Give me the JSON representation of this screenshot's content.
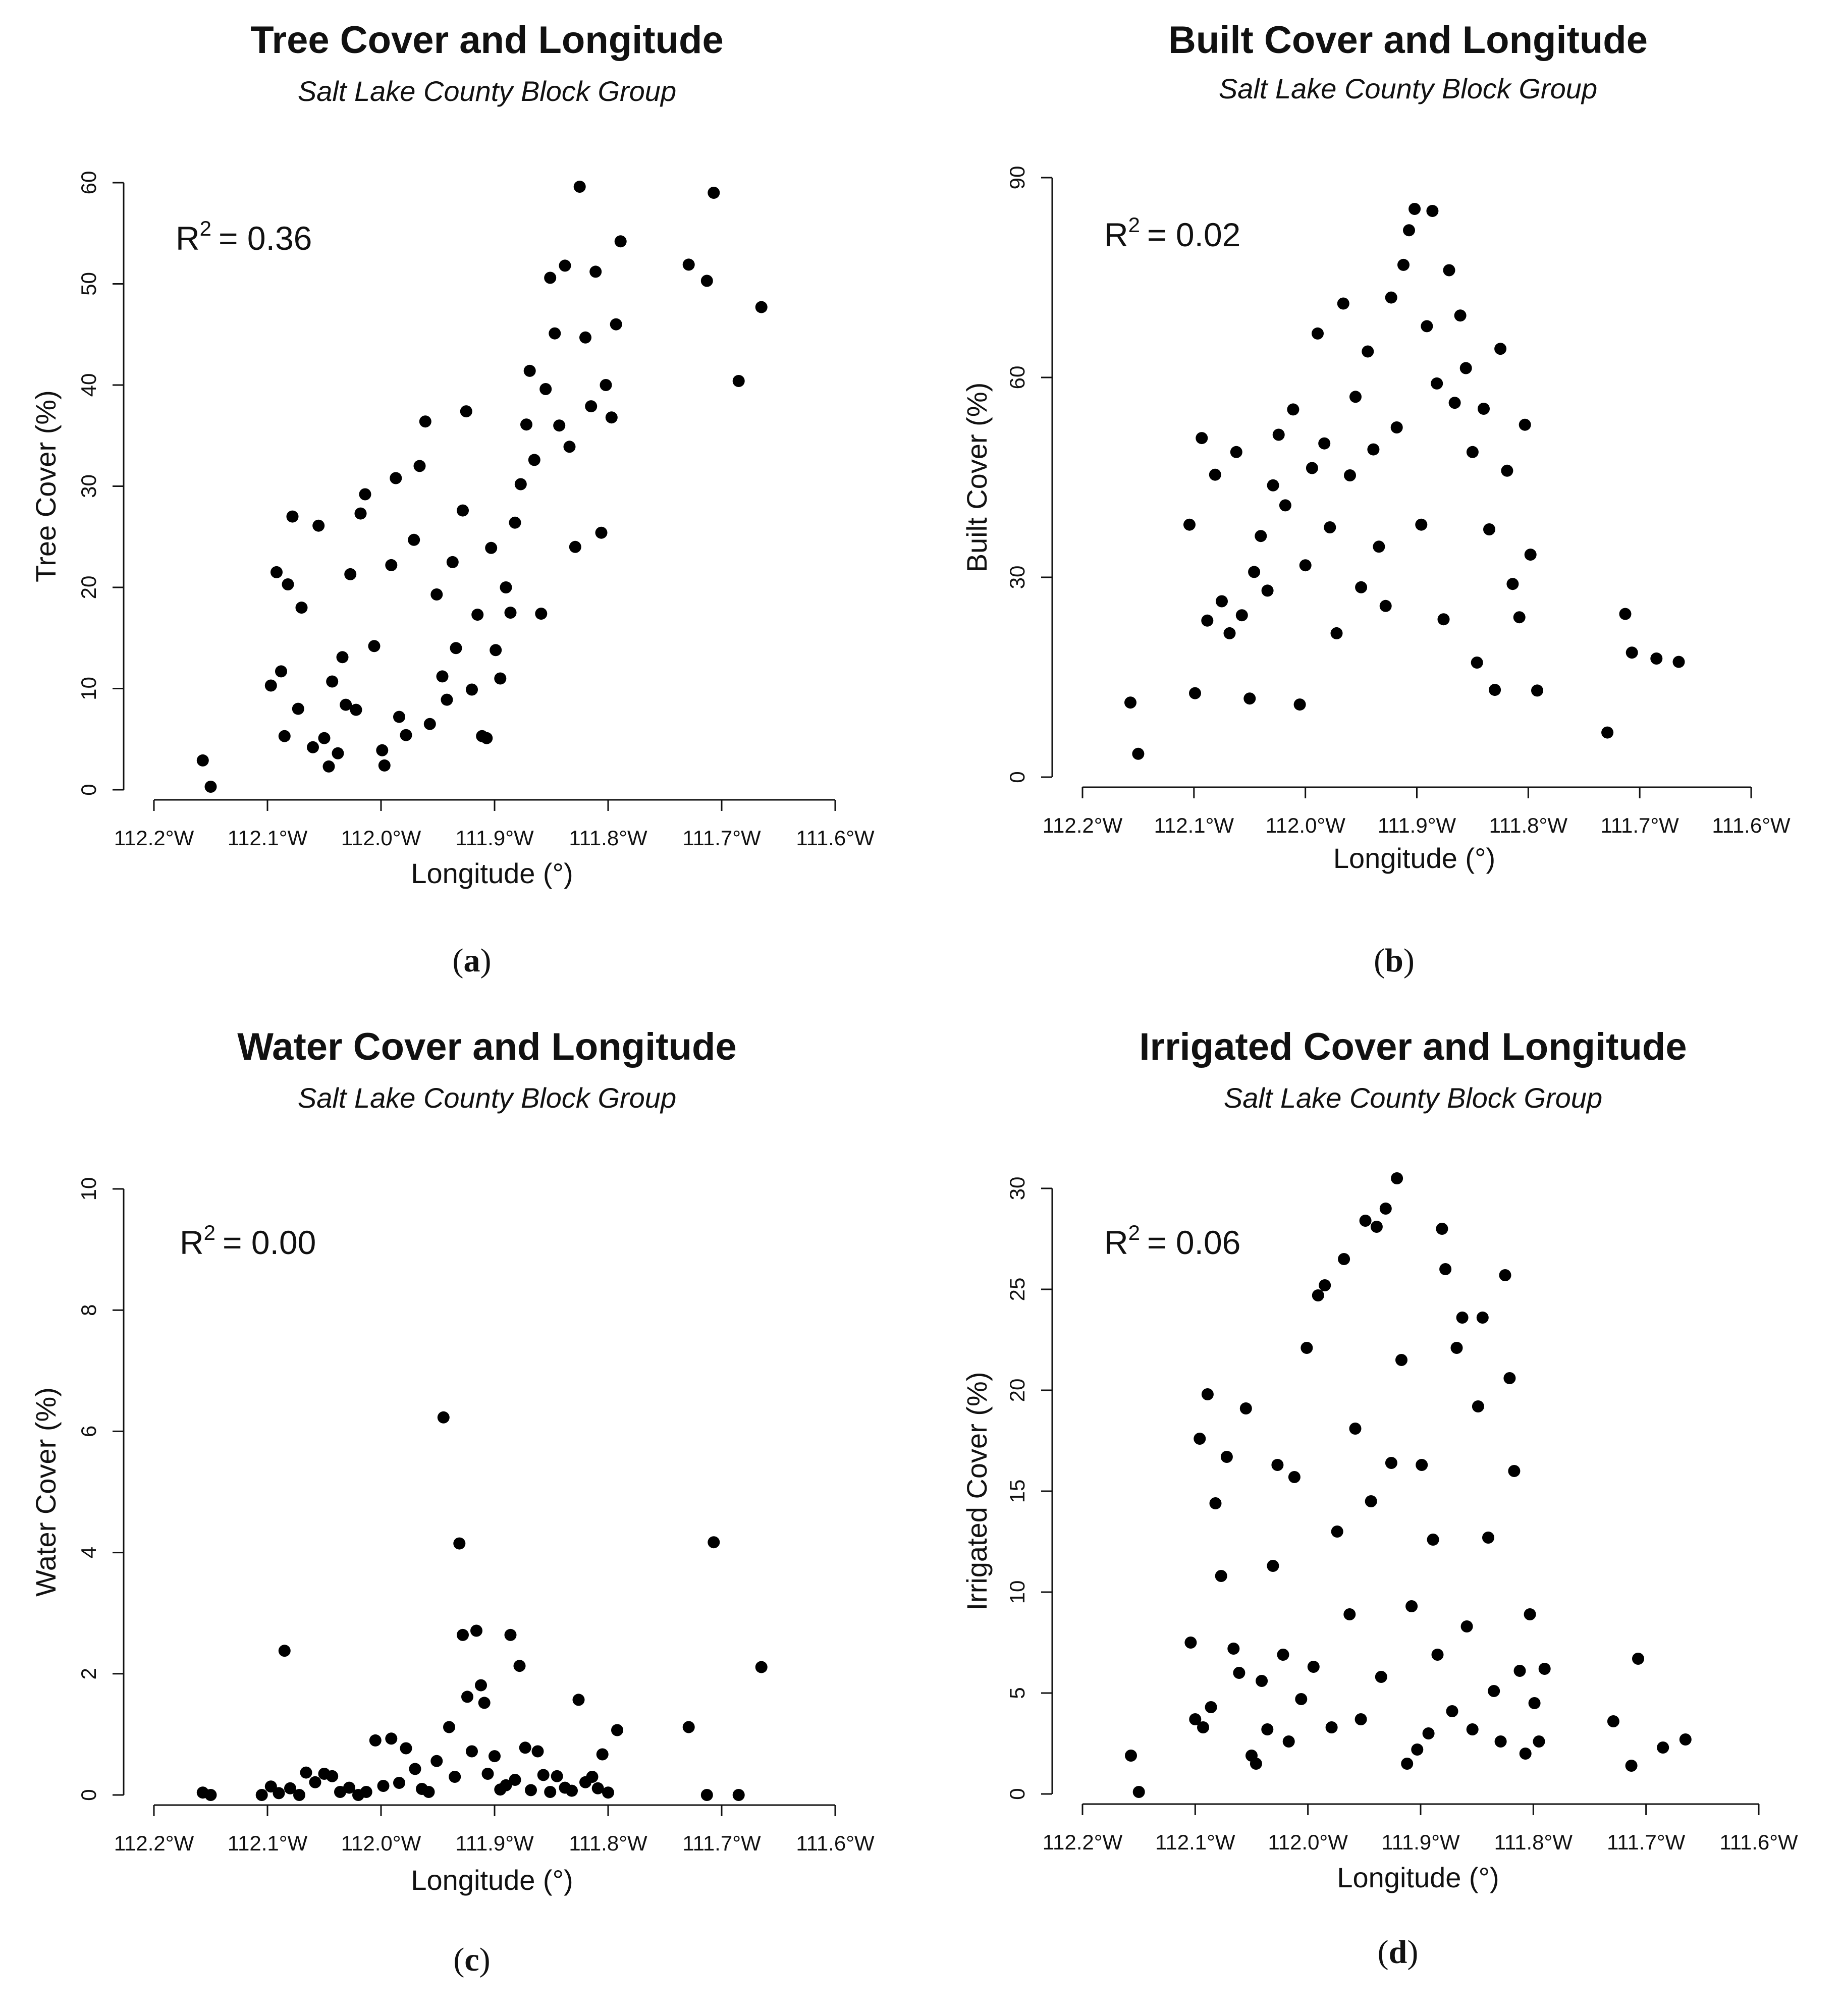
{
  "figure": {
    "panels": [
      "a",
      "b",
      "c",
      "d"
    ]
  },
  "chart_data": [
    {
      "id": "a",
      "type": "scatter",
      "title": "Tree Cover and Longitude",
      "subtitle": "Salt Lake County Block Group",
      "xlabel": "Longitude (°)",
      "ylabel": "Tree Cover (%)",
      "xlim": [
        -112.2,
        -111.6
      ],
      "ylim": [
        0,
        60
      ],
      "xticks": [
        -112.2,
        -112.1,
        -112.0,
        -111.9,
        -111.8,
        -111.7,
        -111.6
      ],
      "xtick_labels": [
        "112.2°W",
        "112.1°W",
        "112.0°W",
        "111.9°W",
        "111.8°W",
        "111.7°W",
        "111.6°W"
      ],
      "yticks": [
        0,
        10,
        20,
        30,
        40,
        50,
        60
      ],
      "ytick_labels": [
        "0",
        "10",
        "20",
        "30",
        "40",
        "50",
        "60"
      ],
      "r2_label": "R",
      "r2_value": "=  0.36",
      "caption_letter": "a",
      "points": [
        [
          -112.157,
          2.9
        ],
        [
          -112.15,
          0.3
        ],
        [
          -112.097,
          10.3
        ],
        [
          -112.092,
          21.5
        ],
        [
          -112.088,
          11.7
        ],
        [
          -112.085,
          5.3
        ],
        [
          -112.082,
          20.3
        ],
        [
          -112.078,
          27.0
        ],
        [
          -112.073,
          8.0
        ],
        [
          -112.07,
          18.0
        ],
        [
          -112.06,
          4.2
        ],
        [
          -112.055,
          26.1
        ],
        [
          -112.05,
          5.1
        ],
        [
          -112.046,
          2.3
        ],
        [
          -112.043,
          10.7
        ],
        [
          -112.038,
          3.6
        ],
        [
          -112.034,
          13.1
        ],
        [
          -112.031,
          8.4
        ],
        [
          -112.027,
          21.3
        ],
        [
          -112.022,
          7.9
        ],
        [
          -112.018,
          27.3
        ],
        [
          -112.014,
          29.2
        ],
        [
          -112.006,
          14.2
        ],
        [
          -111.999,
          3.9
        ],
        [
          -111.997,
          2.4
        ],
        [
          -111.991,
          22.2
        ],
        [
          -111.987,
          30.8
        ],
        [
          -111.984,
          7.2
        ],
        [
          -111.978,
          5.4
        ],
        [
          -111.971,
          24.7
        ],
        [
          -111.966,
          32.0
        ],
        [
          -111.961,
          36.4
        ],
        [
          -111.957,
          6.5
        ],
        [
          -111.951,
          19.3
        ],
        [
          -111.946,
          11.2
        ],
        [
          -111.942,
          8.9
        ],
        [
          -111.937,
          22.5
        ],
        [
          -111.934,
          14.0
        ],
        [
          -111.928,
          27.6
        ],
        [
          -111.925,
          37.4
        ],
        [
          -111.92,
          9.9
        ],
        [
          -111.915,
          17.3
        ],
        [
          -111.911,
          5.3
        ],
        [
          -111.907,
          5.1
        ],
        [
          -111.903,
          23.9
        ],
        [
          -111.899,
          13.8
        ],
        [
          -111.895,
          11.0
        ],
        [
          -111.89,
          20.0
        ],
        [
          -111.886,
          17.5
        ],
        [
          -111.882,
          26.4
        ],
        [
          -111.877,
          30.2
        ],
        [
          -111.872,
          36.1
        ],
        [
          -111.869,
          41.4
        ],
        [
          -111.865,
          32.6
        ],
        [
          -111.859,
          17.4
        ],
        [
          -111.855,
          39.6
        ],
        [
          -111.851,
          50.6
        ],
        [
          -111.847,
          45.1
        ],
        [
          -111.843,
          36.0
        ],
        [
          -111.838,
          51.8
        ],
        [
          -111.834,
          33.9
        ],
        [
          -111.829,
          24.0
        ],
        [
          -111.825,
          59.6
        ],
        [
          -111.82,
          44.7
        ],
        [
          -111.815,
          37.9
        ],
        [
          -111.811,
          51.2
        ],
        [
          -111.806,
          25.4
        ],
        [
          -111.802,
          40.0
        ],
        [
          -111.797,
          36.8
        ],
        [
          -111.793,
          46.0
        ],
        [
          -111.789,
          54.2
        ],
        [
          -111.729,
          51.9
        ],
        [
          -111.713,
          50.3
        ],
        [
          -111.707,
          59.0
        ],
        [
          -111.685,
          40.4
        ],
        [
          -111.665,
          47.7
        ]
      ]
    },
    {
      "id": "b",
      "type": "scatter",
      "title": "Built Cover and Longitude",
      "subtitle": "Salt Lake County Block Group",
      "xlabel": "Longitude (°)",
      "ylabel": "Built Cover (%)",
      "xlim": [
        -112.2,
        -111.6
      ],
      "ylim": [
        0,
        90
      ],
      "xticks": [
        -112.2,
        -112.1,
        -112.0,
        -111.9,
        -111.8,
        -111.7,
        -111.6
      ],
      "xtick_labels": [
        "112.2°W",
        "112.1°W",
        "112.0°W",
        "111.9°W",
        "111.8°W",
        "111.7°W",
        "111.6°W"
      ],
      "yticks": [
        0,
        30,
        60,
        90
      ],
      "ytick_labels": [
        "0",
        "30",
        "60",
        "90"
      ],
      "r2_label": "R",
      "r2_value": "=  0.02",
      "caption_letter": "b",
      "points": [
        [
          -112.157,
          11.2
        ],
        [
          -112.15,
          3.5
        ],
        [
          -112.104,
          37.9
        ],
        [
          -112.099,
          12.6
        ],
        [
          -112.093,
          50.9
        ],
        [
          -112.088,
          23.5
        ],
        [
          -112.081,
          45.4
        ],
        [
          -112.075,
          26.4
        ],
        [
          -112.068,
          21.6
        ],
        [
          -112.062,
          48.8
        ],
        [
          -112.057,
          24.3
        ],
        [
          -112.05,
          11.8
        ],
        [
          -112.046,
          30.8
        ],
        [
          -112.04,
          36.2
        ],
        [
          -112.034,
          28.0
        ],
        [
          -112.029,
          43.8
        ],
        [
          -112.024,
          51.4
        ],
        [
          -112.018,
          40.8
        ],
        [
          -112.011,
          55.2
        ],
        [
          -112.005,
          10.9
        ],
        [
          -112.0,
          31.8
        ],
        [
          -111.994,
          46.4
        ],
        [
          -111.989,
          66.6
        ],
        [
          -111.983,
          50.1
        ],
        [
          -111.978,
          37.5
        ],
        [
          -111.972,
          21.6
        ],
        [
          -111.966,
          71.1
        ],
        [
          -111.96,
          45.3
        ],
        [
          -111.955,
          57.1
        ],
        [
          -111.95,
          28.5
        ],
        [
          -111.944,
          63.9
        ],
        [
          -111.939,
          49.2
        ],
        [
          -111.934,
          34.6
        ],
        [
          -111.928,
          25.7
        ],
        [
          -111.923,
          72.0
        ],
        [
          -111.918,
          52.5
        ],
        [
          -111.912,
          76.9
        ],
        [
          -111.907,
          82.1
        ],
        [
          -111.902,
          85.3
        ],
        [
          -111.896,
          37.9
        ],
        [
          -111.891,
          67.7
        ],
        [
          -111.886,
          85.0
        ],
        [
          -111.882,
          59.1
        ],
        [
          -111.876,
          23.7
        ],
        [
          -111.871,
          76.1
        ],
        [
          -111.866,
          56.2
        ],
        [
          -111.861,
          69.3
        ],
        [
          -111.856,
          61.4
        ],
        [
          -111.85,
          48.8
        ],
        [
          -111.846,
          17.2
        ],
        [
          -111.84,
          55.3
        ],
        [
          -111.835,
          37.2
        ],
        [
          -111.83,
          13.1
        ],
        [
          -111.825,
          64.3
        ],
        [
          -111.819,
          46.0
        ],
        [
          -111.814,
          29.0
        ],
        [
          -111.808,
          24.0
        ],
        [
          -111.803,
          52.9
        ],
        [
          -111.798,
          33.4
        ],
        [
          -111.792,
          13.0
        ],
        [
          -111.729,
          6.7
        ],
        [
          -111.713,
          24.5
        ],
        [
          -111.707,
          18.7
        ],
        [
          -111.685,
          17.8
        ],
        [
          -111.665,
          17.3
        ]
      ]
    },
    {
      "id": "c",
      "type": "scatter",
      "title": "Water Cover and Longitude",
      "subtitle": "Salt Lake County Block Group",
      "xlabel": "Longitude (°)",
      "ylabel": "Water Cover (%)",
      "xlim": [
        -112.2,
        -111.6
      ],
      "ylim": [
        0,
        10
      ],
      "xticks": [
        -112.2,
        -112.1,
        -112.0,
        -111.9,
        -111.8,
        -111.7,
        -111.6
      ],
      "xtick_labels": [
        "112.2°W",
        "112.1°W",
        "112.0°W",
        "111.9°W",
        "111.8°W",
        "111.7°W",
        "111.6°W"
      ],
      "yticks": [
        0,
        2,
        4,
        6,
        8,
        10
      ],
      "ytick_labels": [
        "0",
        "2",
        "4",
        "6",
        "8",
        "10"
      ],
      "r2_label": "R",
      "r2_value": "= 0.00",
      "caption_letter": "c",
      "points": [
        [
          -112.157,
          0.04
        ],
        [
          -112.15,
          0.0
        ],
        [
          -112.105,
          0.0
        ],
        [
          -112.097,
          0.14
        ],
        [
          -112.09,
          0.03
        ],
        [
          -112.085,
          2.38
        ],
        [
          -112.08,
          0.11
        ],
        [
          -112.072,
          0.0
        ],
        [
          -112.066,
          0.37
        ],
        [
          -112.058,
          0.21
        ],
        [
          -112.05,
          0.35
        ],
        [
          -112.043,
          0.31
        ],
        [
          -112.036,
          0.05
        ],
        [
          -112.028,
          0.12
        ],
        [
          -112.02,
          0.0
        ],
        [
          -112.013,
          0.05
        ],
        [
          -112.005,
          0.9
        ],
        [
          -111.998,
          0.15
        ],
        [
          -111.991,
          0.93
        ],
        [
          -111.984,
          0.2
        ],
        [
          -111.978,
          0.77
        ],
        [
          -111.97,
          0.43
        ],
        [
          -111.964,
          0.1
        ],
        [
          -111.958,
          0.05
        ],
        [
          -111.951,
          0.56
        ],
        [
          -111.945,
          6.23
        ],
        [
          -111.94,
          1.12
        ],
        [
          -111.935,
          0.3
        ],
        [
          -111.931,
          4.15
        ],
        [
          -111.928,
          2.64
        ],
        [
          -111.924,
          1.62
        ],
        [
          -111.92,
          0.72
        ],
        [
          -111.916,
          2.71
        ],
        [
          -111.912,
          1.81
        ],
        [
          -111.909,
          1.52
        ],
        [
          -111.906,
          0.35
        ],
        [
          -111.9,
          0.64
        ],
        [
          -111.895,
          0.09
        ],
        [
          -111.89,
          0.16
        ],
        [
          -111.886,
          2.64
        ],
        [
          -111.882,
          0.25
        ],
        [
          -111.878,
          2.13
        ],
        [
          -111.873,
          0.78
        ],
        [
          -111.868,
          0.08
        ],
        [
          -111.862,
          0.72
        ],
        [
          -111.857,
          0.33
        ],
        [
          -111.851,
          0.05
        ],
        [
          -111.845,
          0.31
        ],
        [
          -111.838,
          0.12
        ],
        [
          -111.832,
          0.07
        ],
        [
          -111.826,
          1.57
        ],
        [
          -111.82,
          0.21
        ],
        [
          -111.814,
          0.3
        ],
        [
          -111.809,
          0.11
        ],
        [
          -111.805,
          0.67
        ],
        [
          -111.8,
          0.04
        ],
        [
          -111.792,
          1.07
        ],
        [
          -111.729,
          1.12
        ],
        [
          -111.713,
          0.0
        ],
        [
          -111.707,
          4.17
        ],
        [
          -111.685,
          0.0
        ],
        [
          -111.665,
          2.11
        ]
      ]
    },
    {
      "id": "d",
      "type": "scatter",
      "title": "Irrigated Cover and Longitude",
      "subtitle": "Salt Lake County Block Group",
      "xlabel": "Longitude (°)",
      "ylabel": "Irrigated Cover (%)",
      "xlim": [
        -112.2,
        -111.6
      ],
      "ylim": [
        0,
        30
      ],
      "xticks": [
        -112.2,
        -112.1,
        -112.0,
        -111.9,
        -111.8,
        -111.7,
        -111.6
      ],
      "xtick_labels": [
        "112.2°W",
        "112.1°W",
        "112.0°W",
        "111.9°W",
        "111.8°W",
        "111.7°W",
        "111.6°W"
      ],
      "yticks": [
        0,
        5,
        10,
        15,
        20,
        25,
        30
      ],
      "ytick_labels": [
        "0",
        "5",
        "10",
        "15",
        "20",
        "25",
        "30"
      ],
      "r2_label": "R",
      "r2_value": "=  0.06",
      "caption_letter": "d",
      "points": [
        [
          -112.157,
          1.9
        ],
        [
          -112.15,
          0.1
        ],
        [
          -112.104,
          7.5
        ],
        [
          -112.1,
          3.7
        ],
        [
          -112.096,
          17.6
        ],
        [
          -112.093,
          3.3
        ],
        [
          -112.089,
          19.8
        ],
        [
          -112.086,
          4.3
        ],
        [
          -112.082,
          14.4
        ],
        [
          -112.077,
          10.8
        ],
        [
          -112.072,
          16.7
        ],
        [
          -112.066,
          7.2
        ],
        [
          -112.061,
          6.0
        ],
        [
          -112.055,
          19.1
        ],
        [
          -112.05,
          1.9
        ],
        [
          -112.046,
          1.5
        ],
        [
          -112.041,
          5.6
        ],
        [
          -112.036,
          3.2
        ],
        [
          -112.031,
          11.3
        ],
        [
          -112.027,
          16.3
        ],
        [
          -112.022,
          6.9
        ],
        [
          -112.017,
          2.6
        ],
        [
          -112.012,
          15.7
        ],
        [
          -112.006,
          4.7
        ],
        [
          -112.001,
          22.1
        ],
        [
          -111.995,
          6.3
        ],
        [
          -111.991,
          24.7
        ],
        [
          -111.985,
          25.2
        ],
        [
          -111.979,
          3.3
        ],
        [
          -111.974,
          13.0
        ],
        [
          -111.968,
          26.5
        ],
        [
          -111.963,
          8.9
        ],
        [
          -111.958,
          18.1
        ],
        [
          -111.953,
          3.7
        ],
        [
          -111.949,
          28.4
        ],
        [
          -111.944,
          14.5
        ],
        [
          -111.939,
          28.1
        ],
        [
          -111.935,
          5.8
        ],
        [
          -111.931,
          29.0
        ],
        [
          -111.926,
          16.4
        ],
        [
          -111.921,
          30.5
        ],
        [
          -111.917,
          21.5
        ],
        [
          -111.912,
          1.5
        ],
        [
          -111.908,
          9.3
        ],
        [
          -111.903,
          2.2
        ],
        [
          -111.899,
          16.3
        ],
        [
          -111.893,
          3.0
        ],
        [
          -111.889,
          12.6
        ],
        [
          -111.885,
          6.9
        ],
        [
          -111.881,
          28.0
        ],
        [
          -111.878,
          26.0
        ],
        [
          -111.872,
          4.1
        ],
        [
          -111.868,
          22.1
        ],
        [
          -111.863,
          23.6
        ],
        [
          -111.859,
          8.3
        ],
        [
          -111.854,
          3.2
        ],
        [
          -111.849,
          19.2
        ],
        [
          -111.845,
          23.6
        ],
        [
          -111.84,
          12.7
        ],
        [
          -111.835,
          5.1
        ],
        [
          -111.829,
          2.6
        ],
        [
          -111.825,
          25.7
        ],
        [
          -111.821,
          20.6
        ],
        [
          -111.817,
          16.0
        ],
        [
          -111.812,
          6.1
        ],
        [
          -111.807,
          2.0
        ],
        [
          -111.803,
          8.9
        ],
        [
          -111.799,
          4.5
        ],
        [
          -111.795,
          2.6
        ],
        [
          -111.79,
          6.2
        ],
        [
          -111.729,
          3.6
        ],
        [
          -111.713,
          1.4
        ],
        [
          -111.707,
          6.7
        ],
        [
          -111.685,
          2.3
        ],
        [
          -111.665,
          2.7
        ]
      ]
    }
  ]
}
